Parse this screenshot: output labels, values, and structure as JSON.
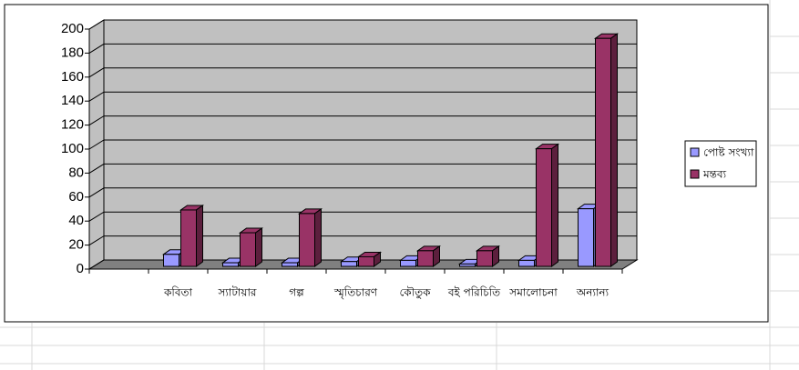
{
  "chart_data": {
    "type": "bar",
    "categories": [
      null,
      "কবিতা",
      "স্যাটায়ার",
      "গল্প",
      "স্মৃতিচারণ",
      "কৌতুক",
      "বই পরিচিতি",
      "সমালোচনা",
      "অন্যান্য"
    ],
    "series": [
      {
        "name": "পোষ্ট সংখ্যা",
        "color": "#9999ff",
        "values": [
          null,
          10,
          3,
          3,
          4,
          5,
          2,
          5,
          48
        ]
      },
      {
        "name": "মন্তব্য",
        "color": "#993366",
        "values": [
          null,
          47,
          28,
          44,
          8,
          13,
          13,
          98,
          190
        ]
      }
    ],
    "ylim": [
      0,
      200
    ],
    "yticks": [
      0,
      20,
      40,
      60,
      80,
      100,
      120,
      140,
      160,
      180,
      200
    ],
    "grid": true,
    "legend": "right"
  }
}
